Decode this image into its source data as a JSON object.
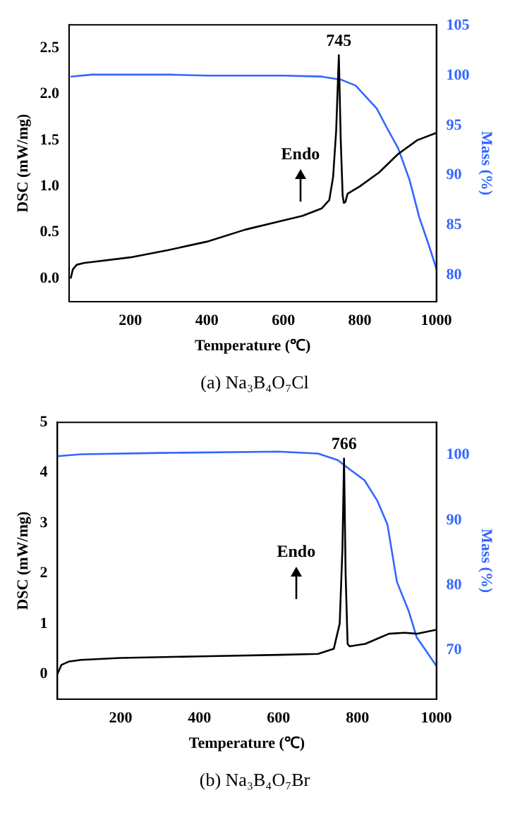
{
  "chart_data": [
    {
      "type": "line",
      "title": "(a) Na₃B₄O₇Cl",
      "xlabel": "Temperature (℃)",
      "ylabel": "DSC (mW/mg)",
      "y2label": "Mass (%)",
      "xlim": [
        40,
        1000
      ],
      "xticks": [
        200,
        400,
        600,
        800,
        1000
      ],
      "ylim": [
        -0.25,
        2.75
      ],
      "yticks": [
        {
          "value": 0,
          "label": "0.0"
        },
        {
          "value": 0.5,
          "label": "0.5"
        },
        {
          "value": 1,
          "label": "1.0"
        },
        {
          "value": 1.5,
          "label": "1.5"
        },
        {
          "value": 2,
          "label": "2.0"
        },
        {
          "value": 2.5,
          "label": "2.5"
        }
      ],
      "y2lim": [
        77.3,
        105.1
      ],
      "y2ticks": [
        80,
        85,
        90,
        95,
        100,
        105
      ],
      "grid": false,
      "legend": false,
      "marker": "none",
      "annotations": [
        {
          "text": "745",
          "x": 745,
          "y": 2.42
        },
        "Endo"
      ],
      "series": [
        {
          "color": "#000000",
          "x": [
            44,
            50,
            60,
            80,
            100,
            200,
            300,
            400,
            500,
            600,
            650,
            700,
            720,
            730,
            738,
            745,
            750,
            755,
            758,
            762,
            768,
            780,
            800,
            850,
            900,
            950,
            1000
          ],
          "values": [
            0.0,
            0.1,
            0.15,
            0.17,
            0.18,
            0.23,
            0.31,
            0.4,
            0.53,
            0.63,
            0.68,
            0.76,
            0.85,
            1.1,
            1.6,
            2.42,
            1.5,
            0.9,
            0.82,
            0.83,
            0.92,
            0.95,
            1.0,
            1.15,
            1.35,
            1.5,
            1.58
          ]
        },
        {
          "color": "#3366ff",
          "axis": "y2",
          "x": [
            44,
            100,
            200,
            300,
            400,
            500,
            600,
            700,
            750,
            789,
            844,
            870,
            900,
            930,
            955,
            980,
            1000
          ],
          "values": [
            99.9,
            100.1,
            100.1,
            100.1,
            100.0,
            100.0,
            100.0,
            99.9,
            99.6,
            99.0,
            96.7,
            94.8,
            92.7,
            89.5,
            85.8,
            83.0,
            80.6
          ]
        }
      ]
    },
    {
      "type": "line",
      "title": "(b) Na₃B₄O₇Br",
      "xlabel": "Temperature (℃)",
      "ylabel": "DSC (mW/mg)",
      "y2label": "Mass (%)",
      "xlim": [
        40,
        1000
      ],
      "xticks": [
        200,
        400,
        600,
        800,
        1000
      ],
      "ylim": [
        -0.5,
        5
      ],
      "yticks": [
        0,
        1,
        2,
        3,
        4,
        5
      ],
      "y2lim": [
        62.5,
        105
      ],
      "y2ticks": [
        70,
        80,
        90,
        100
      ],
      "grid": false,
      "legend": false,
      "marker": "none",
      "annotations": [
        {
          "text": "766",
          "x": 766,
          "y": 4.28
        },
        "Endo"
      ],
      "series": [
        {
          "color": "#000000",
          "x": [
            40,
            50,
            70,
            100,
            200,
            400,
            600,
            700,
            740,
            755,
            762,
            766,
            770,
            775,
            780,
            820,
            850,
            880,
            920,
            950,
            1000
          ],
          "values": [
            0.0,
            0.18,
            0.25,
            0.28,
            0.32,
            0.35,
            0.38,
            0.4,
            0.5,
            1.0,
            2.5,
            4.28,
            2.0,
            0.6,
            0.55,
            0.6,
            0.7,
            0.8,
            0.82,
            0.8,
            0.88
          ]
        },
        {
          "color": "#3366ff",
          "axis": "y2",
          "x": [
            40,
            100,
            300,
            600,
            700,
            750,
            780,
            818,
            850,
            876,
            900,
            930,
            950,
            973,
            1000
          ],
          "values": [
            99.8,
            100.1,
            100.3,
            100.5,
            100.2,
            99.2,
            97.8,
            96.1,
            93,
            89.3,
            80.5,
            76,
            72,
            70,
            67.6
          ]
        }
      ]
    }
  ]
}
